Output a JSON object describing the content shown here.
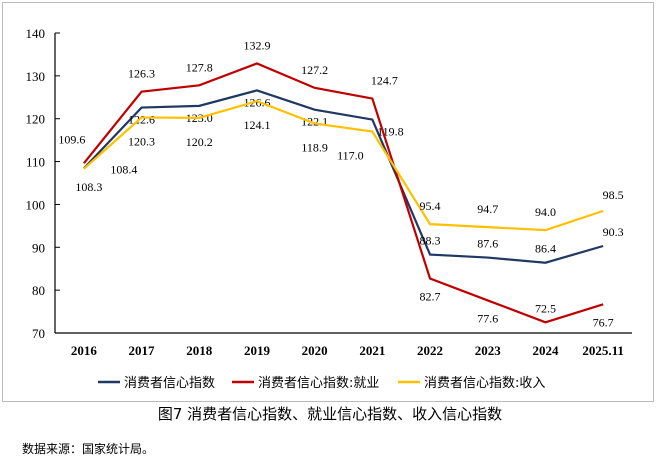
{
  "chart_data": {
    "type": "line",
    "title": "图7 消费者信心指数、就业信心指数、收入信心指数",
    "categories": [
      "2016",
      "2017",
      "2018",
      "2019",
      "2020",
      "2021",
      "2022",
      "2023",
      "2024",
      "2025.11"
    ],
    "ylim": [
      70,
      140
    ],
    "yticks": [
      70,
      80,
      90,
      100,
      110,
      120,
      130,
      140
    ],
    "grid": false,
    "legend": "bottom",
    "series": [
      {
        "name": "消费者信心指数",
        "color": "#1f3864",
        "values": [
          108.4,
          122.6,
          123.0,
          126.6,
          122.1,
          119.8,
          88.3,
          87.6,
          86.4,
          90.3
        ]
      },
      {
        "name": "消费者信心指数:就业",
        "color": "#c00000",
        "values": [
          109.6,
          126.3,
          127.8,
          132.9,
          127.2,
          124.7,
          82.7,
          77.6,
          72.5,
          76.7
        ]
      },
      {
        "name": "消费者信心指数:收入",
        "color": "#ffc000",
        "values": [
          108.3,
          120.3,
          120.2,
          124.1,
          118.9,
          117.0,
          95.4,
          94.7,
          94.0,
          98.5
        ]
      }
    ]
  },
  "source": "数据来源：国家统计局。"
}
